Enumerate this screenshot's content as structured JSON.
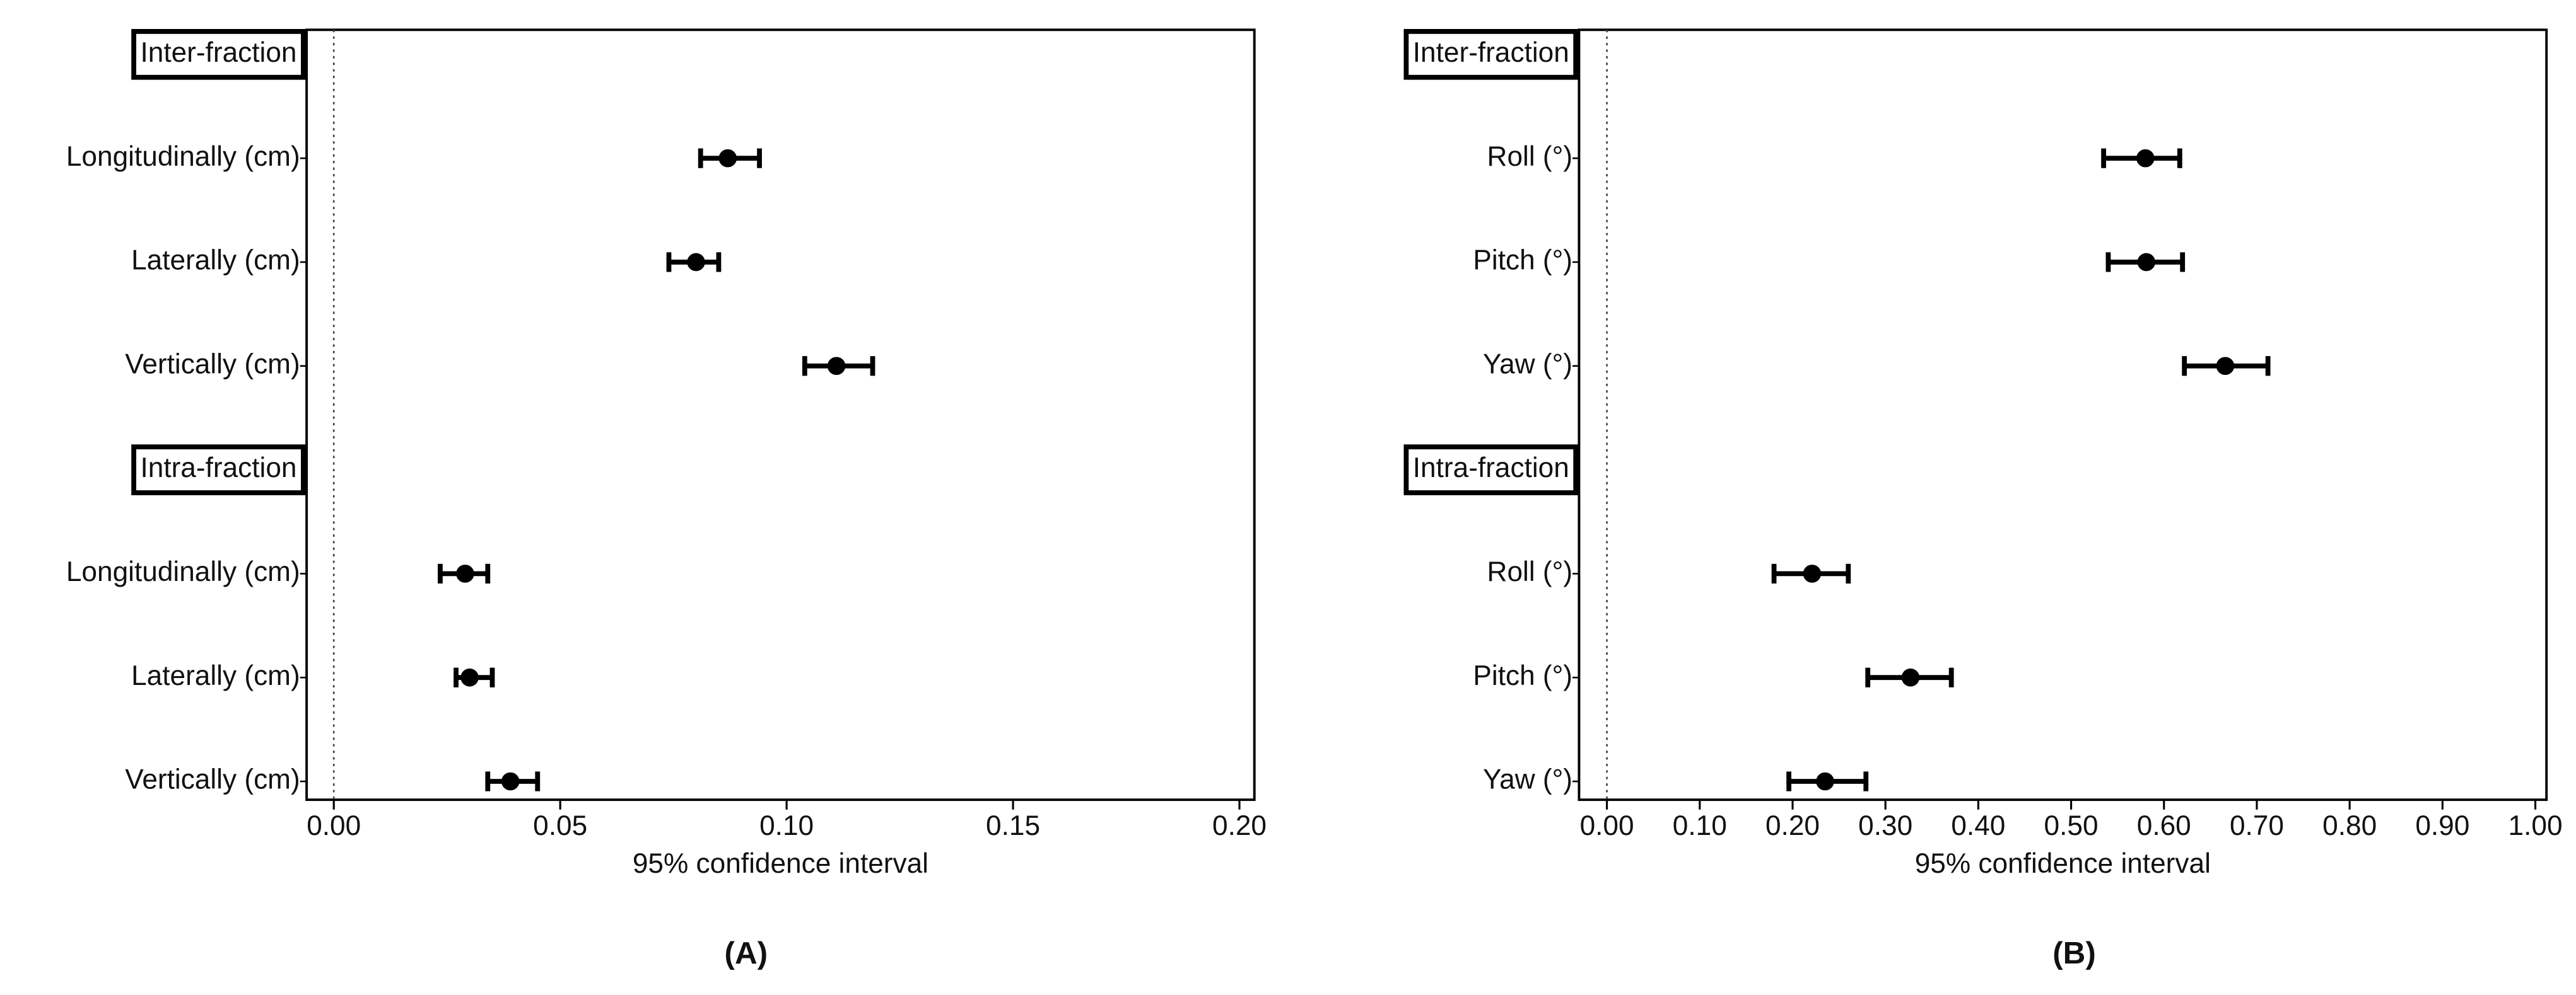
{
  "chart_data": [
    {
      "type": "forest",
      "panel_label": "(A)",
      "xlabel": "95% confidence interval",
      "xlim": [
        -0.006,
        0.2033
      ],
      "xticks": [
        {
          "value": 0,
          "label": "0.00"
        },
        {
          "value": 0.05,
          "label": "0.05"
        },
        {
          "value": 0.1,
          "label": "0.10"
        },
        {
          "value": 0.15,
          "label": "0.15"
        },
        {
          "value": 0.2,
          "label": "0.20"
        }
      ],
      "reference_line": 0,
      "color": "#000000",
      "groups": [
        {
          "name": "Inter-fraction",
          "categories": [
            "Longitudinally (cm)",
            "Laterally (cm)",
            "Vertically (cm)"
          ],
          "values": [
            0.087,
            0.08,
            0.111
          ],
          "lower": [
            0.081,
            0.074,
            0.104
          ],
          "upper": [
            0.094,
            0.085,
            0.119
          ]
        },
        {
          "name": "Intra-fraction",
          "categories": [
            "Longitudinally (cm)",
            "Laterally (cm)",
            "Vertically (cm)"
          ],
          "values": [
            0.029,
            0.03,
            0.039
          ],
          "lower": [
            0.0235,
            0.027,
            0.034
          ],
          "upper": [
            0.034,
            0.035,
            0.045
          ]
        }
      ]
    },
    {
      "type": "forest",
      "panel_label": "(B)",
      "xlabel": "95% confidence interval",
      "xlim": [
        -0.03,
        1.012
      ],
      "xticks": [
        {
          "value": 0,
          "label": "0.00"
        },
        {
          "value": 0.1,
          "label": "0.10"
        },
        {
          "value": 0.2,
          "label": "0.20"
        },
        {
          "value": 0.3,
          "label": "0.30"
        },
        {
          "value": 0.4,
          "label": "0.40"
        },
        {
          "value": 0.5,
          "label": "0.50"
        },
        {
          "value": 0.6,
          "label": "0.60"
        },
        {
          "value": 0.7,
          "label": "0.70"
        },
        {
          "value": 0.8,
          "label": "0.80"
        },
        {
          "value": 0.9,
          "label": "0.90"
        },
        {
          "value": 1,
          "label": "1.00"
        }
      ],
      "reference_line": 0,
      "color": "#000000",
      "groups": [
        {
          "name": "Inter-fraction",
          "categories": [
            "Roll (°)",
            "Pitch (°)",
            "Yaw (°)"
          ],
          "values": [
            0.58,
            0.581,
            0.666
          ],
          "lower": [
            0.535,
            0.54,
            0.622
          ],
          "upper": [
            0.617,
            0.62,
            0.712
          ]
        },
        {
          "name": "Intra-fraction",
          "categories": [
            "Roll (°)",
            "Pitch (°)",
            "Yaw (°)"
          ],
          "values": [
            0.221,
            0.327,
            0.235
          ],
          "lower": [
            0.18,
            0.281,
            0.196
          ],
          "upper": [
            0.26,
            0.371,
            0.279
          ]
        }
      ]
    }
  ]
}
